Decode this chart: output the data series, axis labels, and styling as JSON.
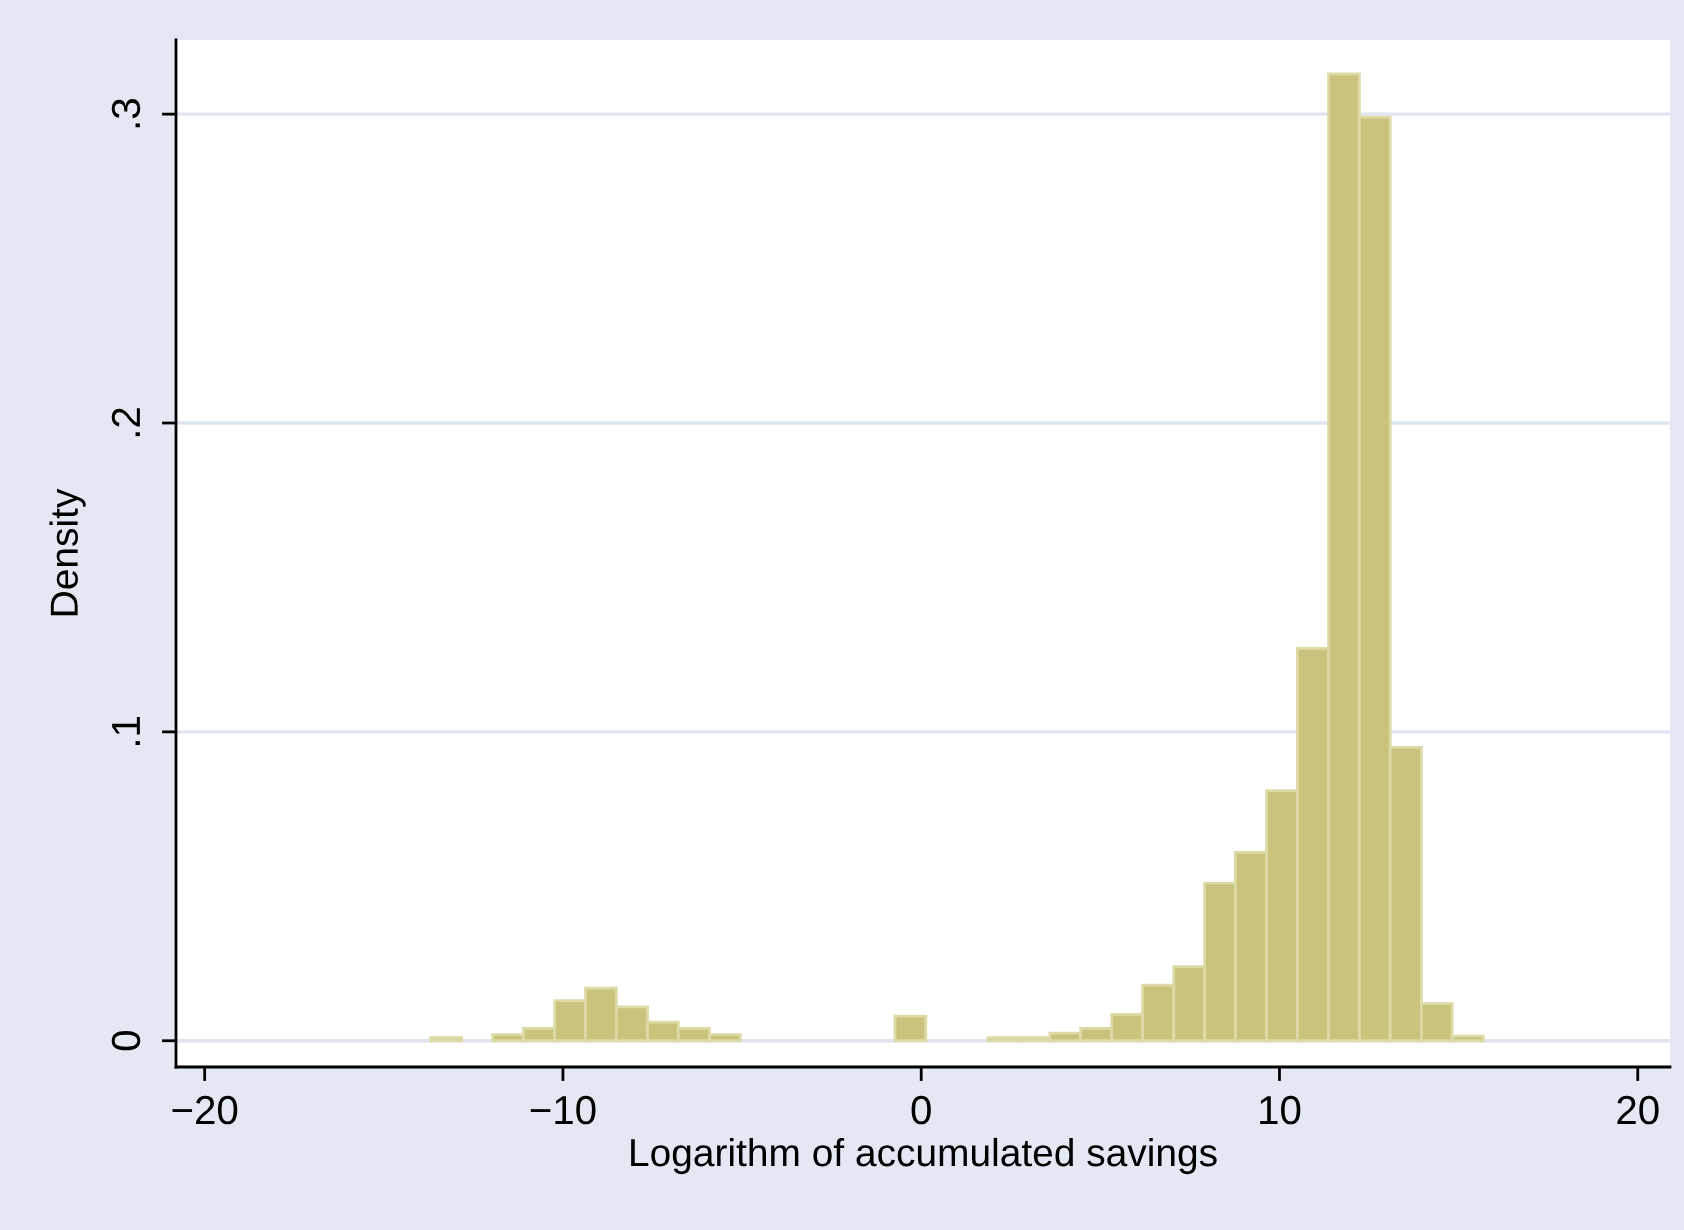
{
  "chart_data": {
    "type": "histogram",
    "xlabel": "Logarithm of accumulated savings",
    "ylabel": "Density",
    "bins": [
      -13.69,
      -12.83,
      -11.96,
      -11.1,
      -10.23,
      -9.37,
      -8.51,
      -7.64,
      -6.78,
      -5.91,
      -5.05,
      -4.19,
      -3.32,
      -2.46,
      -1.59,
      -0.73,
      0.13,
      1.0,
      1.86,
      2.73,
      3.59,
      4.45,
      5.32,
      6.18,
      7.05,
      7.91,
      8.77,
      9.64,
      10.5,
      11.37,
      12.23,
      13.09,
      13.96,
      14.82,
      15.69
    ],
    "values": [
      0.001,
      0,
      0.002,
      0.004,
      0.013,
      0.017,
      0.011,
      0.006,
      0.004,
      0.002,
      0,
      0,
      0,
      0,
      0,
      0.008,
      0,
      0,
      0.001,
      0.001,
      0.0025,
      0.004,
      0.0085,
      0.018,
      0.024,
      0.051,
      0.061,
      0.081,
      0.127,
      0.313,
      0.299,
      0.095,
      0.012,
      0.0015
    ],
    "color": "#c9c37c",
    "xlim": [
      -20.8,
      20.9
    ],
    "ylim": [
      -0.0085,
      0.324
    ],
    "xticks": [
      {
        "value": -20,
        "label": "−20"
      },
      {
        "value": -10,
        "label": "−10"
      },
      0,
      10,
      20
    ],
    "yticks": [
      0,
      {
        "value": 0.1,
        "label": ".1"
      },
      {
        "value": 0.2,
        "label": ".2"
      },
      {
        "value": 0.3,
        "label": ".3"
      }
    ],
    "grid": "y"
  }
}
